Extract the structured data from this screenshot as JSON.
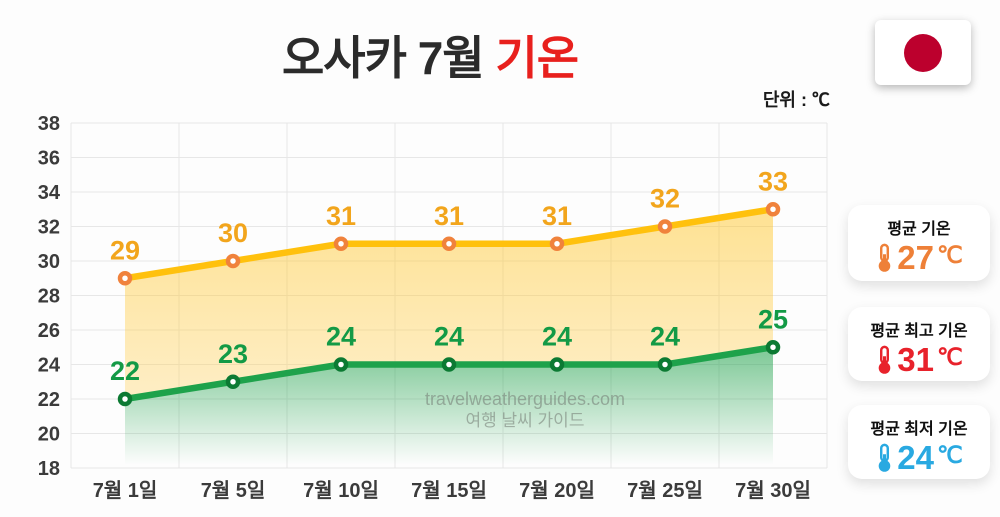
{
  "title": {
    "prefix": "오사카 7월 ",
    "highlight": "기온"
  },
  "unit_label": "단위 : ℃",
  "flag": {
    "circle_color": "#BC002D"
  },
  "watermark": {
    "line1": "travelweatherguides.com",
    "line2": "여행 날씨 가이드"
  },
  "summary_cards": [
    {
      "label": "평균 기온",
      "value": "27",
      "unit": "℃",
      "color": "#EE8038"
    },
    {
      "label": "평균 최고 기온",
      "value": "31",
      "unit": "℃",
      "color": "#E8222B"
    },
    {
      "label": "평균 최저 기온",
      "value": "24",
      "unit": "℃",
      "color": "#29A9E1"
    }
  ],
  "chart_data": {
    "type": "line",
    "title": "오사카 7월 기온",
    "ylabel": "℃",
    "categories": [
      "7월 1일",
      "7월 5일",
      "7월 10일",
      "7월 15일",
      "7월 20일",
      "7월 25일",
      "7월 30일"
    ],
    "series": [
      {
        "name": "최고 기온",
        "values": [
          29,
          30,
          31,
          31,
          31,
          32,
          33
        ],
        "line_color": "#FFC10D",
        "marker_color": "#F0823C",
        "label_color": "#F2A51C"
      },
      {
        "name": "최저 기온",
        "values": [
          22,
          23,
          24,
          24,
          24,
          24,
          25
        ],
        "line_color": "#1EA24B",
        "marker_color": "#0C7A33",
        "label_color": "#139A46"
      }
    ],
    "ylim": [
      18,
      38
    ],
    "yticks": [
      38,
      36,
      34,
      32,
      30,
      28,
      26,
      24,
      22,
      20,
      18
    ],
    "grid": true,
    "legend": "none",
    "tick_color": "#3b3b3b",
    "grid_color": "#E7E7E7"
  }
}
